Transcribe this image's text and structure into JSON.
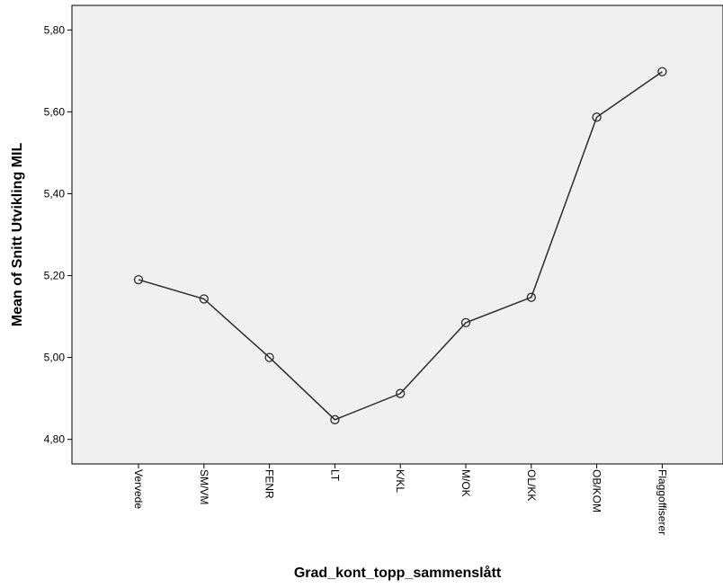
{
  "chart_data": {
    "type": "line",
    "title": "",
    "xlabel": "Grad_kont_topp_sammenslått",
    "ylabel": "Mean of Snitt Utvikling MIL",
    "categories": [
      "Vervede",
      "SM/VM",
      "FENR",
      "LT",
      "K/KL",
      "M/OK",
      "OL/KK",
      "OB/KOM",
      "Flaggoffiserer"
    ],
    "series": [
      {
        "values": [
          5.19,
          5.143,
          5.0,
          4.848,
          4.912,
          5.085,
          5.147,
          5.587,
          5.698
        ]
      }
    ],
    "ylim": [
      4.74,
      5.86
    ],
    "yticks": [
      4.8,
      5.0,
      5.2,
      5.4,
      5.6,
      5.8
    ],
    "ytick_labels": [
      "4,80",
      "5,00",
      "5,20",
      "5,40",
      "5,60",
      "5,80"
    ],
    "grid": false,
    "legend": "none",
    "colors": {
      "plot_background": "#f0f0f0",
      "line": "#2b2b2b",
      "marker_stroke": "#2b2b2b",
      "axis": "#000000"
    }
  }
}
